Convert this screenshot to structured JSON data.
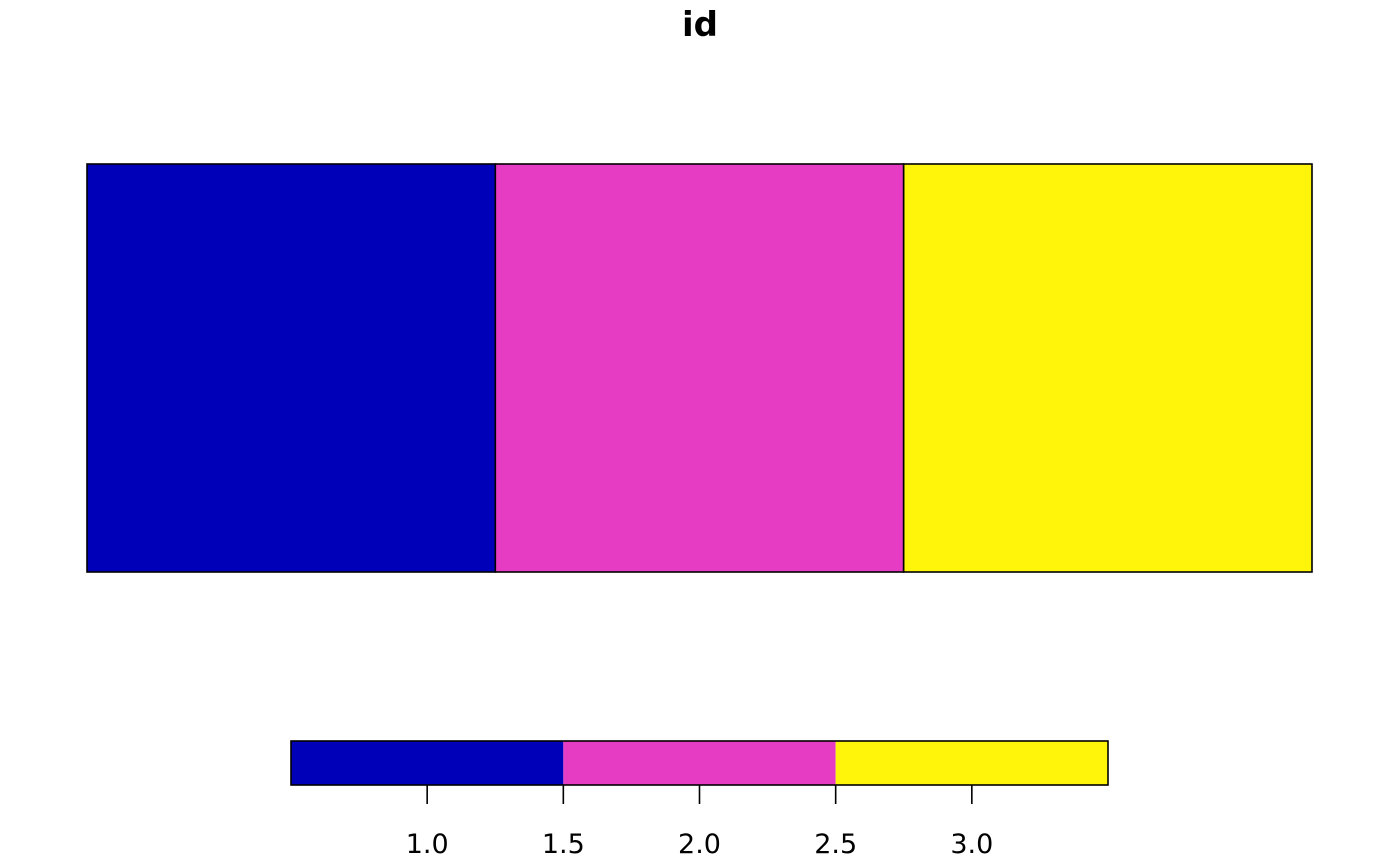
{
  "chart_data": {
    "type": "heatmap",
    "title": "id",
    "grid": false,
    "legend_placement": "bottom",
    "cells": [
      {
        "col": 1,
        "row": 1,
        "value": 1
      },
      {
        "col": 2,
        "row": 1,
        "value": 2
      },
      {
        "col": 3,
        "row": 1,
        "value": 3
      }
    ],
    "colorbar": {
      "range": [
        0.5,
        3.5
      ],
      "ticks": [
        1.0,
        1.5,
        2.0,
        2.5,
        3.0
      ],
      "tick_labels": [
        "1.0",
        "1.5",
        "2.0",
        "2.5",
        "3.0"
      ],
      "breaks": [
        0.5,
        1.5,
        2.5,
        3.5
      ],
      "colors": [
        "#0000B8",
        "#E63CC4",
        "#FFF50A"
      ]
    }
  }
}
